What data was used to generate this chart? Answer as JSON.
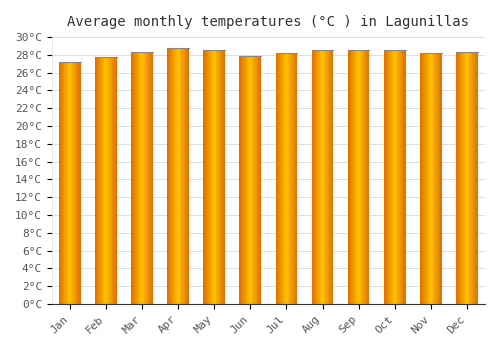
{
  "title": "Average monthly temperatures (°C ) in Lagunillas",
  "months": [
    "Jan",
    "Feb",
    "Mar",
    "Apr",
    "May",
    "Jun",
    "Jul",
    "Aug",
    "Sep",
    "Oct",
    "Nov",
    "Dec"
  ],
  "values": [
    27.2,
    27.8,
    28.3,
    28.8,
    28.5,
    27.9,
    28.2,
    28.5,
    28.6,
    28.6,
    28.2,
    28.3
  ],
  "bar_color_center": "#FFC200",
  "bar_color_edge": "#E07000",
  "bar_top_color": "#666666",
  "background_color": "#ffffff",
  "plot_bg_color": "#ffffff",
  "ylim": [
    0,
    30
  ],
  "ytick_step": 2,
  "title_fontsize": 10,
  "tick_fontsize": 8,
  "grid_color": "#dddddd",
  "bar_width": 0.6
}
